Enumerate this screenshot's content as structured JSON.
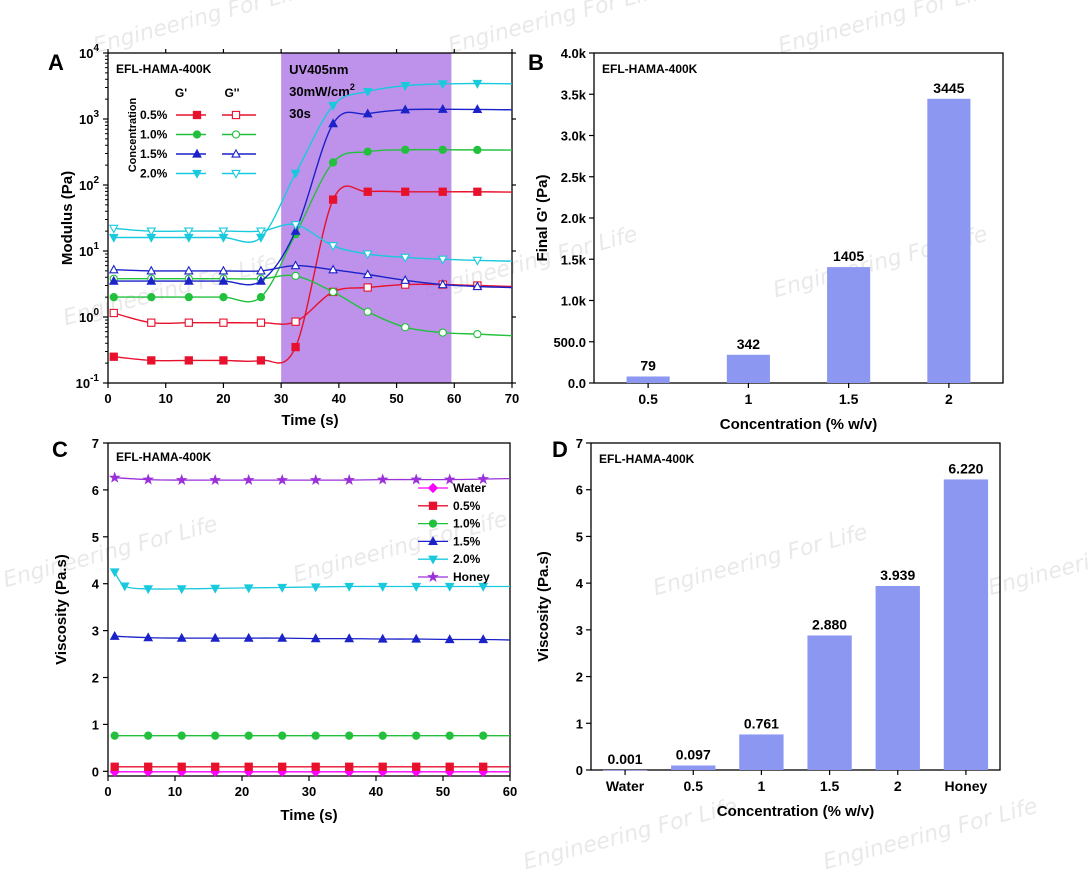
{
  "watermark": {
    "text": "Engineering For Life",
    "logo": "EF2"
  },
  "chart_data": [
    {
      "panel": "A",
      "type": "line",
      "inset_label": "EFL-HAMA-400K",
      "xlabel": "Time (s)",
      "ylabel": "Modulus (Pa)",
      "xlim": [
        0,
        70
      ],
      "ylim": [
        0.1,
        10000
      ],
      "yscale": "log",
      "xticks": [
        0,
        10,
        20,
        30,
        40,
        50,
        60,
        70
      ],
      "yticks": [
        {
          "value": 0.1,
          "base": "10",
          "exp": "-1"
        },
        {
          "value": 1,
          "base": "10",
          "exp": "0"
        },
        {
          "value": 10,
          "base": "10",
          "exp": "1"
        },
        {
          "value": 100,
          "base": "10",
          "exp": "2"
        },
        {
          "value": 1000,
          "base": "10",
          "exp": "3"
        },
        {
          "value": 10000,
          "base": "10",
          "exp": "4"
        }
      ],
      "uv_region": {
        "x_start": 30,
        "x_end": 59.5,
        "color": "#b37fe8",
        "lines": [
          "UV405nm",
          "30mW/cm",
          "30s"
        ],
        "superscript": "2"
      },
      "legend": {
        "title": "Concentration",
        "col1": "G'",
        "col2": "G''",
        "rows": [
          "0.5%",
          "1.0%",
          "1.5%",
          "2.0%"
        ]
      },
      "series": [
        {
          "name": "0.5%",
          "modulus": "G'",
          "color": "#e8112d",
          "marker": "square",
          "filled": true,
          "x": [
            1,
            7.5,
            14,
            20,
            26.5,
            32.5,
            39,
            45,
            51.5,
            58,
            64,
            70
          ],
          "y": [
            0.25,
            0.22,
            0.22,
            0.22,
            0.22,
            0.35,
            60,
            79,
            79,
            79,
            79,
            78
          ]
        },
        {
          "name": "0.5%",
          "modulus": "G''",
          "color": "#e8112d",
          "marker": "square",
          "filled": false,
          "x": [
            1,
            7.5,
            14,
            20,
            26.5,
            32.5,
            39,
            45,
            51.5,
            58,
            64,
            70
          ],
          "y": [
            1.15,
            0.82,
            0.82,
            0.82,
            0.82,
            0.85,
            2.4,
            2.8,
            3.1,
            3.1,
            3.0,
            2.9
          ]
        },
        {
          "name": "1.0%",
          "modulus": "G'",
          "color": "#22c03c",
          "marker": "circle",
          "filled": true,
          "x": [
            1,
            7.5,
            14,
            20,
            26.5,
            32.5,
            39,
            45,
            51.5,
            58,
            64,
            70
          ],
          "y": [
            2.0,
            2.0,
            2.0,
            2.0,
            2.0,
            18,
            220,
            320,
            342,
            342,
            340,
            338
          ]
        },
        {
          "name": "1.0%",
          "modulus": "G''",
          "color": "#22c03c",
          "marker": "circle",
          "filled": false,
          "x": [
            1,
            7.5,
            14,
            20,
            26.5,
            32.5,
            39,
            45,
            51.5,
            58,
            64,
            70
          ],
          "y": [
            3.8,
            3.8,
            3.8,
            3.8,
            3.8,
            4.2,
            2.4,
            1.2,
            0.7,
            0.58,
            0.55,
            0.52
          ]
        },
        {
          "name": "1.5%",
          "modulus": "G'",
          "color": "#1a22c8",
          "marker": "triangle-up",
          "filled": true,
          "x": [
            1,
            7.5,
            14,
            20,
            26.5,
            32.5,
            39,
            45,
            51.5,
            58,
            64,
            70
          ],
          "y": [
            3.5,
            3.5,
            3.5,
            3.5,
            3.5,
            20,
            850,
            1200,
            1380,
            1405,
            1400,
            1380
          ]
        },
        {
          "name": "1.5%",
          "modulus": "G''",
          "color": "#1a22c8",
          "marker": "triangle-up",
          "filled": false,
          "x": [
            1,
            7.5,
            14,
            20,
            26.5,
            32.5,
            39,
            45,
            51.5,
            58,
            64,
            70
          ],
          "y": [
            5.2,
            5.0,
            5.0,
            5.0,
            5.0,
            6.0,
            5.2,
            4.4,
            3.6,
            3.1,
            2.9,
            2.8
          ]
        },
        {
          "name": "2.0%",
          "modulus": "G'",
          "color": "#19c9dd",
          "marker": "triangle-down",
          "filled": true,
          "x": [
            1,
            7.5,
            14,
            20,
            26.5,
            32.5,
            39,
            45,
            51.5,
            58,
            64,
            70
          ],
          "y": [
            16,
            16,
            16,
            16,
            16,
            150,
            1600,
            2600,
            3200,
            3400,
            3445,
            3420
          ]
        },
        {
          "name": "2.0%",
          "modulus": "G''",
          "color": "#19c9dd",
          "marker": "triangle-down",
          "filled": false,
          "x": [
            1,
            7.5,
            14,
            20,
            26.5,
            32.5,
            39,
            45,
            51.5,
            58,
            64,
            70
          ],
          "y": [
            22,
            20,
            20,
            20,
            20,
            25,
            12,
            9,
            8,
            7.5,
            7.2,
            7.0
          ]
        }
      ]
    },
    {
      "panel": "B",
      "type": "bar",
      "inset_label": "EFL-HAMA-400K",
      "xlabel": "Concentration (% w/v)",
      "ylabel": "Final G' (Pa)",
      "categories": [
        "0.5",
        "1",
        "1.5",
        "2"
      ],
      "values": [
        79,
        342,
        1405,
        3445
      ],
      "value_labels": [
        "79",
        "342",
        "1405",
        "3445"
      ],
      "ylim": [
        0,
        4000
      ],
      "yticks": [
        {
          "value": 0,
          "label": "0.0"
        },
        {
          "value": 500,
          "label": "500.0"
        },
        {
          "value": 1000,
          "label": "1.0k"
        },
        {
          "value": 1500,
          "label": "1.5k"
        },
        {
          "value": 2000,
          "label": "2.0k"
        },
        {
          "value": 2500,
          "label": "2.5k"
        },
        {
          "value": 3000,
          "label": "3.0k"
        },
        {
          "value": 3500,
          "label": "3.5k"
        },
        {
          "value": 4000,
          "label": "4.0k"
        }
      ],
      "bar_color": "#8c97f2"
    },
    {
      "panel": "C",
      "type": "line",
      "inset_label": "EFL-HAMA-400K",
      "xlabel": "Time (s)",
      "ylabel": "Viscosity (Pa.s)",
      "xlim": [
        0,
        60
      ],
      "ylim": [
        -0.1,
        7
      ],
      "xticks": [
        0,
        10,
        20,
        30,
        40,
        50,
        60
      ],
      "yticks": [
        0,
        1,
        2,
        3,
        4,
        5,
        6,
        7
      ],
      "series": [
        {
          "name": "Water",
          "color": "#ff00ff",
          "marker": "diamond",
          "x": [
            1,
            6,
            11,
            16,
            21,
            26,
            31,
            36,
            41,
            46,
            51,
            56,
            60
          ],
          "y": [
            -0.01,
            -0.01,
            -0.01,
            -0.01,
            -0.01,
            -0.01,
            -0.01,
            -0.01,
            -0.01,
            -0.01,
            -0.01,
            -0.01,
            -0.01
          ]
        },
        {
          "name": "0.5%",
          "color": "#e8112d",
          "marker": "square",
          "x": [
            1,
            6,
            11,
            16,
            21,
            26,
            31,
            36,
            41,
            46,
            51,
            56,
            60
          ],
          "y": [
            0.097,
            0.097,
            0.097,
            0.097,
            0.097,
            0.097,
            0.097,
            0.097,
            0.097,
            0.097,
            0.097,
            0.097,
            0.097
          ]
        },
        {
          "name": "1.0%",
          "color": "#22c03c",
          "marker": "circle",
          "x": [
            1,
            6,
            11,
            16,
            21,
            26,
            31,
            36,
            41,
            46,
            51,
            56,
            60
          ],
          "y": [
            0.76,
            0.76,
            0.76,
            0.76,
            0.76,
            0.76,
            0.76,
            0.76,
            0.76,
            0.76,
            0.76,
            0.76,
            0.76
          ]
        },
        {
          "name": "1.5%",
          "color": "#1a22c8",
          "marker": "triangle-up",
          "x": [
            1,
            6,
            11,
            16,
            21,
            26,
            31,
            36,
            41,
            46,
            51,
            56,
            60
          ],
          "y": [
            2.88,
            2.85,
            2.84,
            2.84,
            2.84,
            2.84,
            2.83,
            2.83,
            2.82,
            2.82,
            2.81,
            2.81,
            2.8
          ]
        },
        {
          "name": "2.0%",
          "color": "#19c9dd",
          "marker": "triangle-down",
          "x": [
            1,
            2.5,
            6,
            11,
            16,
            21,
            26,
            31,
            36,
            41,
            46,
            51,
            56,
            60
          ],
          "y": [
            4.25,
            3.95,
            3.89,
            3.89,
            3.9,
            3.91,
            3.92,
            3.93,
            3.94,
            3.94,
            3.94,
            3.94,
            3.94,
            3.94
          ]
        },
        {
          "name": "Honey",
          "color": "#9b30d9",
          "marker": "star",
          "x": [
            1,
            6,
            11,
            16,
            21,
            26,
            31,
            36,
            41,
            46,
            51,
            56,
            60
          ],
          "y": [
            6.26,
            6.22,
            6.21,
            6.21,
            6.21,
            6.21,
            6.21,
            6.21,
            6.22,
            6.22,
            6.22,
            6.23,
            6.24
          ]
        }
      ]
    },
    {
      "panel": "D",
      "type": "bar",
      "inset_label": "EFL-HAMA-400K",
      "xlabel": "Concentration (% w/v)",
      "ylabel": "Viscosity (Pa.s)",
      "categories": [
        "Water",
        "0.5",
        "1",
        "1.5",
        "2",
        "Honey"
      ],
      "values": [
        0.001,
        0.097,
        0.761,
        2.88,
        3.939,
        6.22
      ],
      "value_labels": [
        "0.001",
        "0.097",
        "0.761",
        "2.880",
        "3.939",
        "6.220"
      ],
      "ylim": [
        0,
        7
      ],
      "yticks": [
        0,
        1,
        2,
        3,
        4,
        5,
        6,
        7
      ],
      "bar_color": "#8c97f2"
    }
  ]
}
